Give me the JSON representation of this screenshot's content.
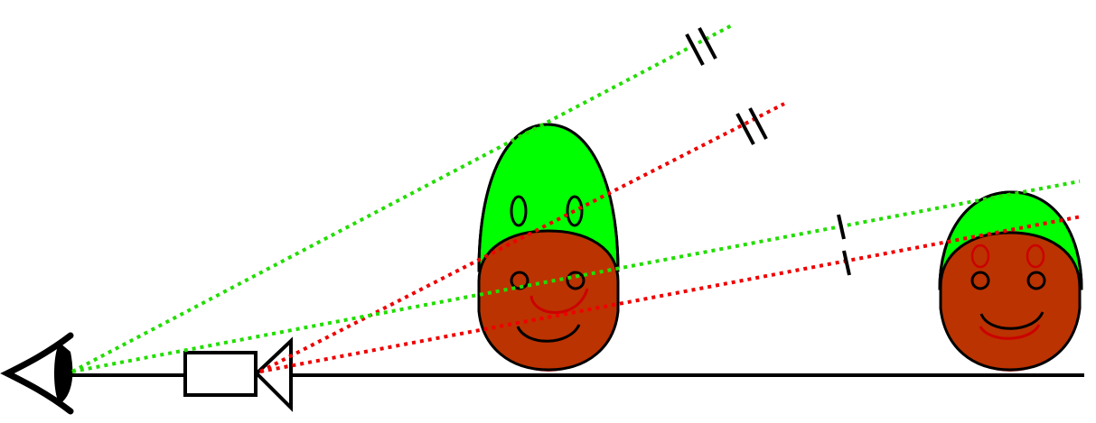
{
  "colors": {
    "background": "#ffffff",
    "outline": "#000000",
    "green_ray": "#22dd00",
    "red_ray": "#ee0000",
    "green_head": "#00ff00",
    "red_head_fill": "#ee2222",
    "red_head_overlay": "#bb3300",
    "red_feature": "#cc0000"
  },
  "icons": [
    "eye-icon",
    "camera-icon"
  ],
  "diagram": {
    "figures": [
      {
        "name": "near-figure",
        "green_head": true,
        "red_head": true
      },
      {
        "name": "far-figure",
        "green_head": true,
        "red_head": true
      }
    ],
    "rays": [
      {
        "name": "green-ray-upper",
        "color": "green",
        "origin": "eye",
        "target": "near-figure-top",
        "tick_marks": 2
      },
      {
        "name": "red-ray-upper",
        "color": "red",
        "origin": "camera",
        "target": "near-figure-top",
        "tick_marks": 2
      },
      {
        "name": "green-ray-lower",
        "color": "green",
        "origin": "eye",
        "target": "far-figure-top",
        "tick_marks": 1
      },
      {
        "name": "red-ray-lower",
        "color": "red",
        "origin": "camera",
        "target": "far-figure-top",
        "tick_marks": 1
      }
    ]
  }
}
